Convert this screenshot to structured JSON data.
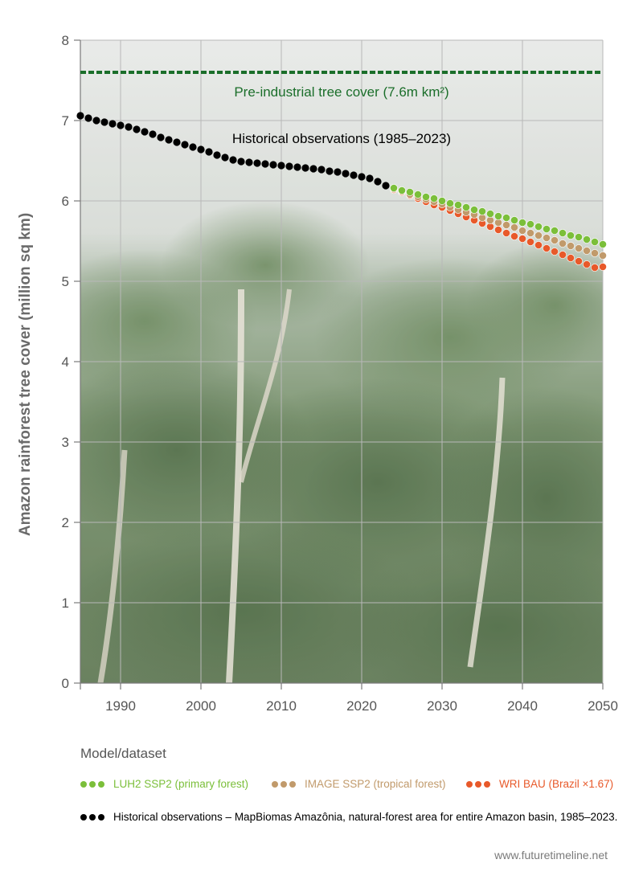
{
  "colors": {
    "luh2": "#7bbf3a",
    "image": "#c19a6b",
    "wri": "#e8592a",
    "historical": "#000000",
    "preindustrial": "#1b6e2a",
    "axis": "#7a7a7a",
    "grid": "#b8b8b8"
  },
  "chart_data": {
    "type": "scatter",
    "ylabel": "Amazon rainforest tree cover (million sq km)",
    "xlim": [
      1985,
      2050
    ],
    "ylim": [
      0,
      8
    ],
    "x_ticks": [
      1990,
      2000,
      2010,
      2020,
      2030,
      2040,
      2050
    ],
    "y_ticks": [
      0,
      1,
      2,
      3,
      4,
      5,
      6,
      7,
      8
    ],
    "grid": true,
    "background": "rainforest photograph",
    "reference_line": {
      "y": 7.6,
      "style": "dashed"
    },
    "annotations": {
      "preindustrial": "Pre-industrial tree cover (7.6m km²)",
      "historical": "Historical observations (1985–2023)"
    },
    "series": [
      {
        "name": "Historical observations – MapBiomas Amazônia, natural-forest area for entire Amazon basin, 1985–2023.",
        "key": "historical",
        "x": [
          1985,
          1986,
          1987,
          1988,
          1989,
          1990,
          1991,
          1992,
          1993,
          1994,
          1995,
          1996,
          1997,
          1998,
          1999,
          2000,
          2001,
          2002,
          2003,
          2004,
          2005,
          2006,
          2007,
          2008,
          2009,
          2010,
          2011,
          2012,
          2013,
          2014,
          2015,
          2016,
          2017,
          2018,
          2019,
          2020,
          2021,
          2022,
          2023
        ],
        "y": [
          7.06,
          7.03,
          7.0,
          6.98,
          6.96,
          6.94,
          6.92,
          6.89,
          6.86,
          6.83,
          6.79,
          6.76,
          6.73,
          6.7,
          6.67,
          6.64,
          6.61,
          6.57,
          6.54,
          6.51,
          6.49,
          6.48,
          6.47,
          6.46,
          6.45,
          6.44,
          6.43,
          6.42,
          6.41,
          6.4,
          6.39,
          6.37,
          6.36,
          6.34,
          6.32,
          6.3,
          6.28,
          6.24,
          6.19
        ]
      },
      {
        "name": "LUH2 SSP2 (primary forest)",
        "key": "luh2",
        "x": [
          2024,
          2025,
          2026,
          2027,
          2028,
          2029,
          2030,
          2031,
          2032,
          2033,
          2034,
          2035,
          2036,
          2037,
          2038,
          2039,
          2040,
          2041,
          2042,
          2043,
          2044,
          2045,
          2046,
          2047,
          2048,
          2049,
          2050
        ],
        "y": [
          6.16,
          6.13,
          6.11,
          6.08,
          6.05,
          6.03,
          6.0,
          5.97,
          5.95,
          5.92,
          5.89,
          5.87,
          5.84,
          5.81,
          5.79,
          5.76,
          5.73,
          5.71,
          5.68,
          5.65,
          5.63,
          5.6,
          5.57,
          5.55,
          5.52,
          5.49,
          5.46
        ]
      },
      {
        "name": "IMAGE SSP2 (tropical forest)",
        "key": "image",
        "x": [
          2024,
          2025,
          2026,
          2027,
          2028,
          2029,
          2030,
          2031,
          2032,
          2033,
          2034,
          2035,
          2036,
          2037,
          2038,
          2039,
          2040,
          2041,
          2042,
          2043,
          2044,
          2045,
          2046,
          2047,
          2048,
          2049,
          2050
        ],
        "y": [
          6.15,
          6.12,
          6.08,
          6.05,
          6.02,
          5.99,
          5.96,
          5.92,
          5.89,
          5.86,
          5.83,
          5.79,
          5.76,
          5.73,
          5.7,
          5.67,
          5.63,
          5.6,
          5.57,
          5.54,
          5.51,
          5.47,
          5.44,
          5.41,
          5.38,
          5.35,
          5.32
        ]
      },
      {
        "name": "WRI BAU (Brazil ×1.67)",
        "key": "wri",
        "x": [
          2024,
          2025,
          2026,
          2027,
          2028,
          2029,
          2030,
          2031,
          2032,
          2033,
          2034,
          2035,
          2036,
          2037,
          2038,
          2039,
          2040,
          2041,
          2042,
          2043,
          2044,
          2045,
          2046,
          2047,
          2048,
          2049,
          2050
        ],
        "y": [
          6.14,
          6.11,
          6.07,
          6.03,
          5.99,
          5.95,
          5.92,
          5.88,
          5.84,
          5.8,
          5.76,
          5.72,
          5.68,
          5.64,
          5.6,
          5.56,
          5.53,
          5.49,
          5.45,
          5.41,
          5.37,
          5.33,
          5.29,
          5.25,
          5.21,
          5.17,
          5.18
        ]
      }
    ]
  },
  "legend": {
    "title": "Model/dataset",
    "items": [
      {
        "key": "luh2",
        "label": "LUH2 SSP2 (primary forest)"
      },
      {
        "key": "image",
        "label": "IMAGE SSP2 (tropical forest)"
      },
      {
        "key": "wri",
        "label": "WRI BAU (Brazil ×1.67)"
      },
      {
        "key": "historical",
        "label": "Historical observations – MapBiomas Amazônia, natural-forest area for entire Amazon basin, 1985–2023."
      }
    ]
  },
  "footer": {
    "url": "www.futuretimeline.net"
  }
}
